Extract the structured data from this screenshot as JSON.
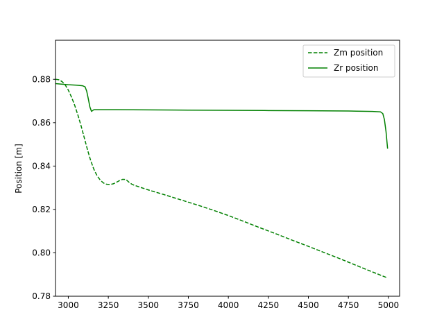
{
  "chart_data": {
    "type": "line",
    "title": "",
    "xlabel": "",
    "ylabel": "Position [m]",
    "xlim": [
      2920,
      5070
    ],
    "ylim": [
      0.78,
      0.898
    ],
    "xticks": [
      3000,
      3250,
      3500,
      3750,
      4000,
      4250,
      4500,
      4750,
      5000
    ],
    "xtick_labels": [
      "3000",
      "3250",
      "3500",
      "3750",
      "4000",
      "4250",
      "4500",
      "4750",
      "5000"
    ],
    "yticks": [
      0.78,
      0.8,
      0.82,
      0.84,
      0.86,
      0.88
    ],
    "ytick_labels": [
      "0.78",
      "0.80",
      "0.82",
      "0.84",
      "0.86",
      "0.88"
    ],
    "grid": false,
    "legend_position": "top-right",
    "series": [
      {
        "name": "Zm position",
        "color": "#008000",
        "style": "dashed",
        "x": [
          2920,
          2940,
          2960,
          2980,
          3000,
          3020,
          3040,
          3060,
          3080,
          3100,
          3120,
          3140,
          3160,
          3180,
          3200,
          3220,
          3240,
          3260,
          3280,
          3300,
          3320,
          3340,
          3360,
          3380,
          3400,
          3450,
          3500,
          3600,
          3700,
          3800,
          3900,
          4000,
          4100,
          4200,
          4300,
          4400,
          4500,
          4600,
          4700,
          4800,
          4900,
          4990
        ],
        "y": [
          0.88,
          0.8798,
          0.879,
          0.8775,
          0.875,
          0.8718,
          0.868,
          0.8635,
          0.8585,
          0.853,
          0.8475,
          0.8425,
          0.8385,
          0.8355,
          0.8335,
          0.8322,
          0.8316,
          0.8315,
          0.8318,
          0.8325,
          0.8333,
          0.8339,
          0.8338,
          0.8325,
          0.8315,
          0.8302,
          0.829,
          0.8268,
          0.8245,
          0.8222,
          0.8198,
          0.8172,
          0.8144,
          0.8115,
          0.8087,
          0.8058,
          0.803,
          0.8001,
          0.7972,
          0.7942,
          0.7912,
          0.7886
        ]
      },
      {
        "name": "Zr position",
        "color": "#008000",
        "style": "solid",
        "x": [
          2920,
          2950,
          3000,
          3050,
          3090,
          3105,
          3115,
          3125,
          3135,
          3145,
          3160,
          3200,
          3300,
          3500,
          3750,
          4000,
          4250,
          4500,
          4750,
          4800,
          4900,
          4950,
          4965,
          4975,
          4985,
          4995
        ],
        "y": [
          0.878,
          0.8778,
          0.8775,
          0.8773,
          0.877,
          0.8765,
          0.8745,
          0.871,
          0.8672,
          0.8652,
          0.866,
          0.866,
          0.866,
          0.8659,
          0.8658,
          0.8657,
          0.8656,
          0.8655,
          0.8654,
          0.8653,
          0.8652,
          0.865,
          0.8642,
          0.8615,
          0.856,
          0.848
        ]
      }
    ]
  }
}
